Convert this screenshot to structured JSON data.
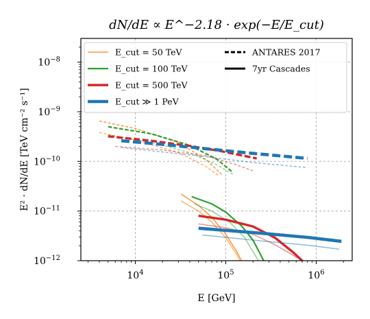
{
  "chart_data": {
    "type": "line",
    "title": "dN/dE ∝ E^−2.18 · exp(−E/E_cut)",
    "xlabel": "E [GeV]",
    "ylabel": "E² · dN/dE  [TeV cm⁻² s⁻¹]",
    "xscale": "log",
    "yscale": "log",
    "xlim": [
      2500,
      2500000
    ],
    "ylim": [
      1e-12,
      3e-08
    ],
    "xticks": [
      {
        "value": 10000,
        "base": "10",
        "exp": "4"
      },
      {
        "value": 100000,
        "base": "10",
        "exp": "5"
      },
      {
        "value": 1000000,
        "base": "10",
        "exp": "6"
      }
    ],
    "yticks": [
      {
        "value": 1e-12,
        "base": "10",
        "exp": "−12"
      },
      {
        "value": 1e-11,
        "base": "10",
        "exp": "−11"
      },
      {
        "value": 1e-10,
        "base": "10",
        "exp": "−10"
      },
      {
        "value": 1e-09,
        "base": "10",
        "exp": "−9"
      },
      {
        "value": 1e-08,
        "base": "10",
        "exp": "−8"
      }
    ],
    "grid": "dashed at major ticks",
    "legend_position": "top",
    "legend_entries": [
      {
        "label": "E_cut = 50 TeV",
        "color": "#ff7f0e",
        "style": "solid",
        "width": 1.2
      },
      {
        "label": "E_cut = 100 TeV",
        "color": "#2ca02c",
        "style": "solid",
        "width": 2.2
      },
      {
        "label": "E_cut = 500 TeV",
        "color": "#d62728",
        "style": "solid",
        "width": 3.4
      },
      {
        "label": "E_cut ≫ 1 PeV",
        "color": "#1f77b4",
        "style": "solid",
        "width": 4.6
      },
      {
        "label": "ANTARES 2017",
        "color": "#000000",
        "style": "dashed",
        "width": 3
      },
      {
        "label": "7yr Cascades",
        "color": "#000000",
        "style": "solid",
        "width": 3
      }
    ],
    "series": [
      {
        "color": "#ff7f0e",
        "style": "dashed",
        "width": 1.2,
        "opacity": 1.0,
        "x": [
          4000,
          10000,
          30000,
          60000,
          90000
        ],
        "y": [
          6.5e-10,
          4.6e-10,
          2.4e-10,
          1.1e-10,
          5.5e-11
        ]
      },
      {
        "color": "#ff7f0e",
        "style": "dashed",
        "width": 1.2,
        "opacity": 0.75,
        "x": [
          4000,
          10000,
          30000,
          60000,
          85000
        ],
        "y": [
          3.8e-10,
          2.7e-10,
          1.5e-10,
          8e-11,
          5e-11
        ]
      },
      {
        "color": "#2ca02c",
        "style": "dashed",
        "width": 2.2,
        "opacity": 1.0,
        "x": [
          5000,
          15000,
          40000,
          80000,
          120000
        ],
        "y": [
          5e-10,
          3.6e-10,
          2.1e-10,
          1.1e-10,
          6e-11
        ]
      },
      {
        "color": "#2ca02c",
        "style": "dashed",
        "width": 1.5,
        "opacity": 0.5,
        "x": [
          5000,
          15000,
          40000,
          80000,
          120000
        ],
        "y": [
          3.4e-10,
          2.4e-10,
          1.5e-10,
          8.5e-11,
          5.5e-11
        ]
      },
      {
        "color": "#d62728",
        "style": "dashed",
        "width": 3.4,
        "opacity": 1.0,
        "x": [
          5000,
          15000,
          40000,
          90000,
          220000
        ],
        "y": [
          3.2e-10,
          2.6e-10,
          2.05e-10,
          1.6e-10,
          1.15e-10
        ]
      },
      {
        "color": "#d62728",
        "style": "dashed",
        "width": 1.5,
        "opacity": 0.5,
        "x": [
          6000,
          20000,
          60000,
          120000,
          200000
        ],
        "y": [
          2e-10,
          1.7e-10,
          1.3e-10,
          9e-11,
          6.5e-11
        ]
      },
      {
        "color": "#1f77b4",
        "style": "dashed",
        "width": 4.6,
        "opacity": 1.0,
        "x": [
          7000,
          20000,
          60000,
          200000,
          800000
        ],
        "y": [
          2.6e-10,
          2.2e-10,
          1.8e-10,
          1.45e-10,
          1.15e-10
        ]
      },
      {
        "color": "#1f77b4",
        "style": "dashed",
        "width": 1.5,
        "opacity": 0.5,
        "x": [
          7000,
          20000,
          60000,
          200000,
          800000
        ],
        "y": [
          1.9e-10,
          1.55e-10,
          1.25e-10,
          9.5e-11,
          7.5e-11
        ]
      },
      {
        "color": "#ff7f0e",
        "style": "solid",
        "width": 1.2,
        "opacity": 1.0,
        "x": [
          32000,
          50000,
          70000,
          100000,
          130000,
          160000
        ],
        "y": [
          2.2e-11,
          1.3e-11,
          7.5e-12,
          3.4e-12,
          1.6e-12,
          8e-13
        ]
      },
      {
        "color": "#ff7f0e",
        "style": "solid",
        "width": 1.2,
        "opacity": 0.75,
        "x": [
          32000,
          50000,
          70000,
          100000,
          130000,
          160000
        ],
        "y": [
          1.6e-11,
          1e-11,
          6e-12,
          2.9e-12,
          1.4e-12,
          7e-13
        ]
      },
      {
        "color": "#2ca02c",
        "style": "solid",
        "width": 2.2,
        "opacity": 1.0,
        "x": [
          42000,
          70000,
          100000,
          150000,
          200000,
          280000
        ],
        "y": [
          1.95e-11,
          1.4e-11,
          9.5e-12,
          5e-12,
          2.6e-12,
          8e-13
        ]
      },
      {
        "color": "#2ca02c",
        "style": "solid",
        "width": 1.5,
        "opacity": 0.5,
        "x": [
          45000,
          70000,
          110000,
          160000,
          230000
        ],
        "y": [
          1.4e-11,
          1e-11,
          6e-12,
          3e-12,
          1e-12
        ]
      },
      {
        "color": "#d62728",
        "style": "solid",
        "width": 3.4,
        "opacity": 1.0,
        "x": [
          50000,
          100000,
          200000,
          350000,
          550000,
          800000
        ],
        "y": [
          8e-12,
          6.7e-12,
          4.9e-12,
          2.9e-12,
          1.5e-12,
          8e-13
        ]
      },
      {
        "color": "#d62728",
        "style": "solid",
        "width": 1.5,
        "opacity": 0.5,
        "x": [
          50000,
          100000,
          200000,
          350000,
          550000,
          700000
        ],
        "y": [
          5.5e-12,
          4.6e-12,
          3.4e-12,
          2.1e-12,
          1.3e-12,
          1e-12
        ]
      },
      {
        "color": "#1f77b4",
        "style": "solid",
        "width": 4.6,
        "opacity": 1.0,
        "x": [
          50000,
          200000,
          800000,
          1900000
        ],
        "y": [
          4.5e-12,
          3.7e-12,
          2.95e-12,
          2.45e-12
        ]
      },
      {
        "color": "#1f77b4",
        "style": "solid",
        "width": 1.5,
        "opacity": 0.5,
        "x": [
          55000,
          200000,
          800000,
          1800000
        ],
        "y": [
          3.3e-12,
          2.6e-12,
          2.05e-12,
          1.7e-12
        ]
      }
    ]
  }
}
